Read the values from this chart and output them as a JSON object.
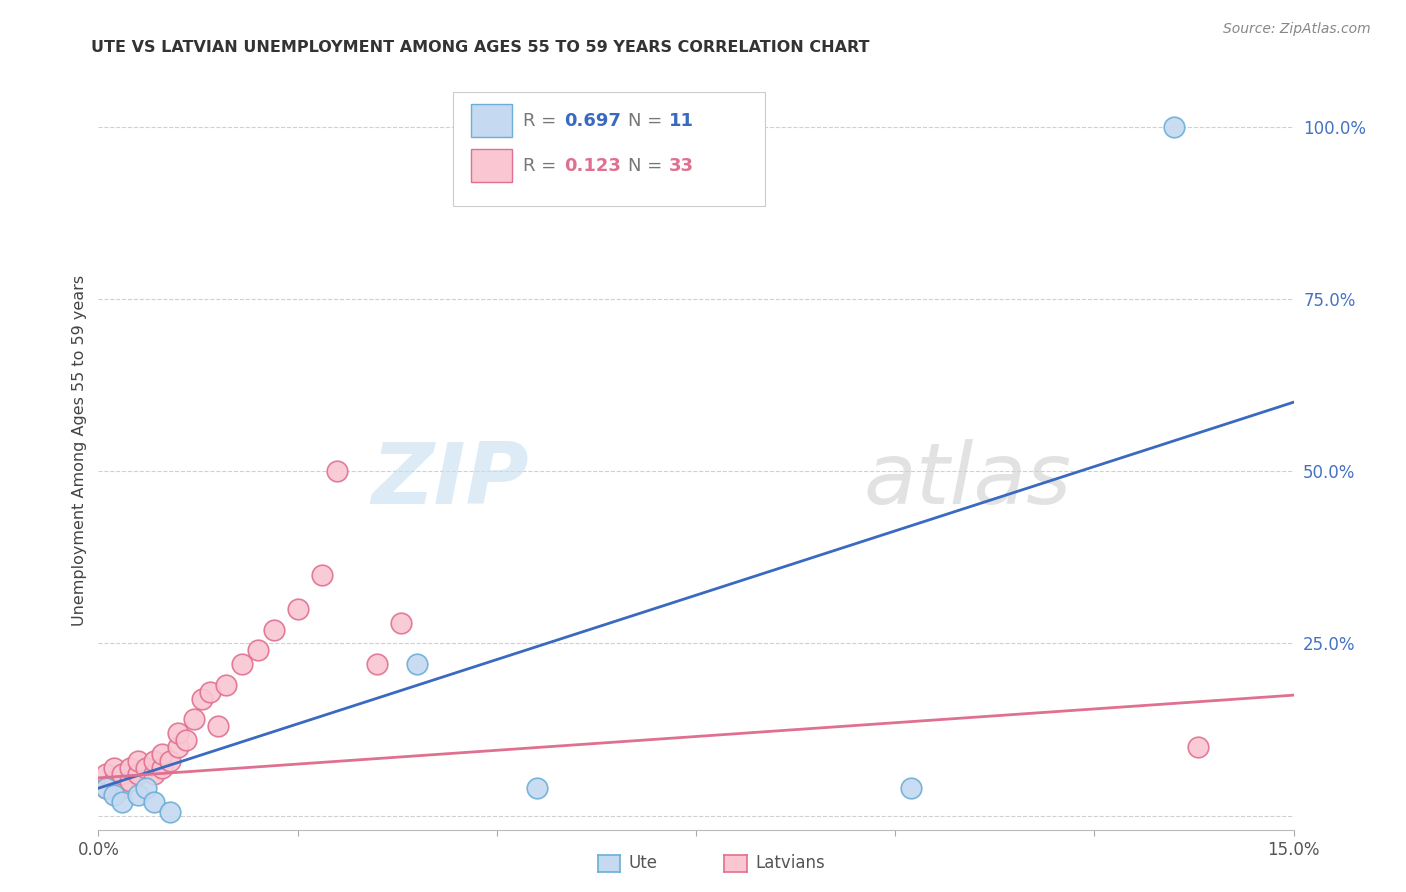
{
  "title": "UTE VS LATVIAN UNEMPLOYMENT AMONG AGES 55 TO 59 YEARS CORRELATION CHART",
  "source": "Source: ZipAtlas.com",
  "ylabel": "Unemployment Among Ages 55 to 59 years",
  "xlim": [
    0.0,
    0.15
  ],
  "ylim": [
    -0.02,
    1.08
  ],
  "xticks": [
    0.0,
    0.025,
    0.05,
    0.075,
    0.1,
    0.125,
    0.15
  ],
  "xticklabels": [
    "0.0%",
    "",
    "",
    "",
    "",
    "",
    "15.0%"
  ],
  "yticks": [
    0.0,
    0.25,
    0.5,
    0.75,
    1.0
  ],
  "yticklabels_right": [
    "",
    "25.0%",
    "50.0%",
    "75.0%",
    "100.0%"
  ],
  "ute_face_color": "#c5d9f0",
  "ute_edge_color": "#6baed6",
  "latvian_face_color": "#f9c6d2",
  "latvian_edge_color": "#e07090",
  "ute_line_color": "#3a6abf",
  "latvian_line_color": "#e07090",
  "tick_color": "#4472c4",
  "ute_R": 0.697,
  "ute_N": 11,
  "latvian_R": 0.123,
  "latvian_N": 33,
  "background_color": "#ffffff",
  "grid_color": "#d0d0d0",
  "ute_x": [
    0.001,
    0.002,
    0.003,
    0.005,
    0.006,
    0.007,
    0.009,
    0.04,
    0.055,
    0.102,
    0.135
  ],
  "ute_y": [
    0.04,
    0.03,
    0.02,
    0.03,
    0.04,
    0.02,
    0.005,
    0.22,
    0.04,
    0.04,
    1.0
  ],
  "latvian_x": [
    0.001,
    0.001,
    0.002,
    0.002,
    0.003,
    0.003,
    0.004,
    0.004,
    0.005,
    0.005,
    0.006,
    0.007,
    0.007,
    0.008,
    0.008,
    0.009,
    0.01,
    0.01,
    0.011,
    0.012,
    0.013,
    0.014,
    0.015,
    0.016,
    0.018,
    0.02,
    0.022,
    0.025,
    0.028,
    0.03,
    0.035,
    0.038,
    0.138
  ],
  "latvian_y": [
    0.04,
    0.06,
    0.05,
    0.07,
    0.04,
    0.06,
    0.05,
    0.07,
    0.06,
    0.08,
    0.07,
    0.06,
    0.08,
    0.07,
    0.09,
    0.08,
    0.1,
    0.12,
    0.11,
    0.14,
    0.17,
    0.18,
    0.13,
    0.19,
    0.22,
    0.24,
    0.27,
    0.3,
    0.35,
    0.5,
    0.22,
    0.28,
    0.1
  ],
  "ute_line_x0": 0.0,
  "ute_line_y0": 0.04,
  "ute_line_x1": 0.15,
  "ute_line_y1": 0.6,
  "latvian_line_x0": 0.0,
  "latvian_line_y0": 0.055,
  "latvian_line_x1": 0.15,
  "latvian_line_y1": 0.175
}
